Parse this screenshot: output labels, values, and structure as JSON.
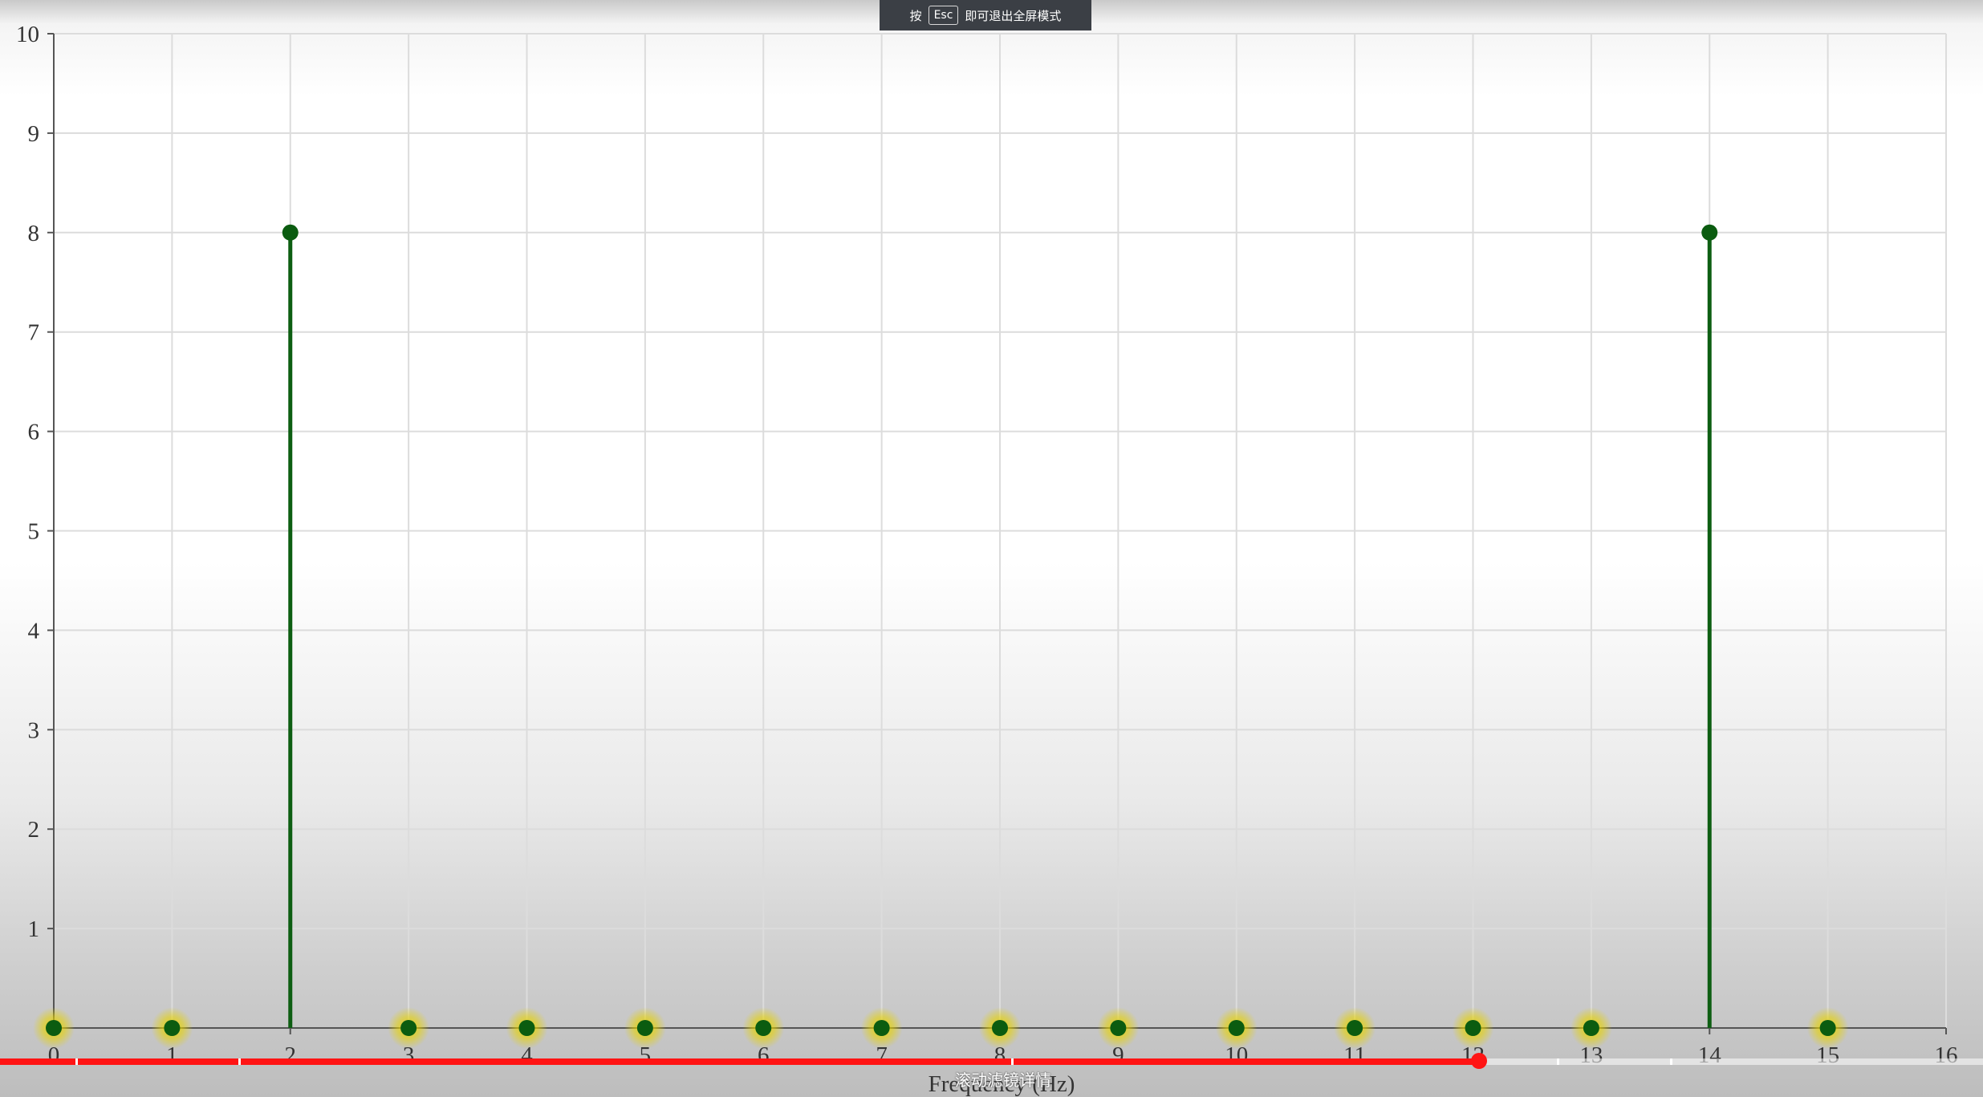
{
  "fullscreen_notice": {
    "prefix": "按",
    "key": "Esc",
    "suffix": "即可退出全屏模式"
  },
  "video_player": {
    "progress_percent": 74.6,
    "chapter_marks": [
      3.8,
      12.0,
      51.0,
      78.5,
      84.2
    ],
    "chapter_label": "滚动滤镜详情"
  },
  "chart_data": {
    "type": "stem",
    "title": "",
    "xlabel": "Frequency (Hz)",
    "ylabel": "",
    "xlim": [
      0,
      16
    ],
    "ylim": [
      0,
      10
    ],
    "x_ticks": [
      "0",
      "1",
      "2",
      "3",
      "4",
      "5",
      "6",
      "7",
      "8",
      "9",
      "10",
      "11",
      "12",
      "13",
      "14",
      "15",
      "16"
    ],
    "y_ticks": [
      "1",
      "2",
      "3",
      "4",
      "5",
      "6",
      "7",
      "8",
      "9",
      "10"
    ],
    "grid": true,
    "colors": {
      "stem": "#0d5e12",
      "marker": "#0b5c10",
      "glow": "#e6d200",
      "axis": "#555555",
      "grid": "#dcdcdc"
    },
    "series": [
      {
        "x": [
          0,
          1,
          2,
          3,
          4,
          5,
          6,
          7,
          8,
          9,
          10,
          11,
          12,
          13,
          14,
          15
        ],
        "y": [
          0,
          0,
          8,
          0,
          0,
          0,
          0,
          0,
          0,
          0,
          0,
          0,
          0,
          0,
          8,
          0
        ]
      }
    ]
  }
}
